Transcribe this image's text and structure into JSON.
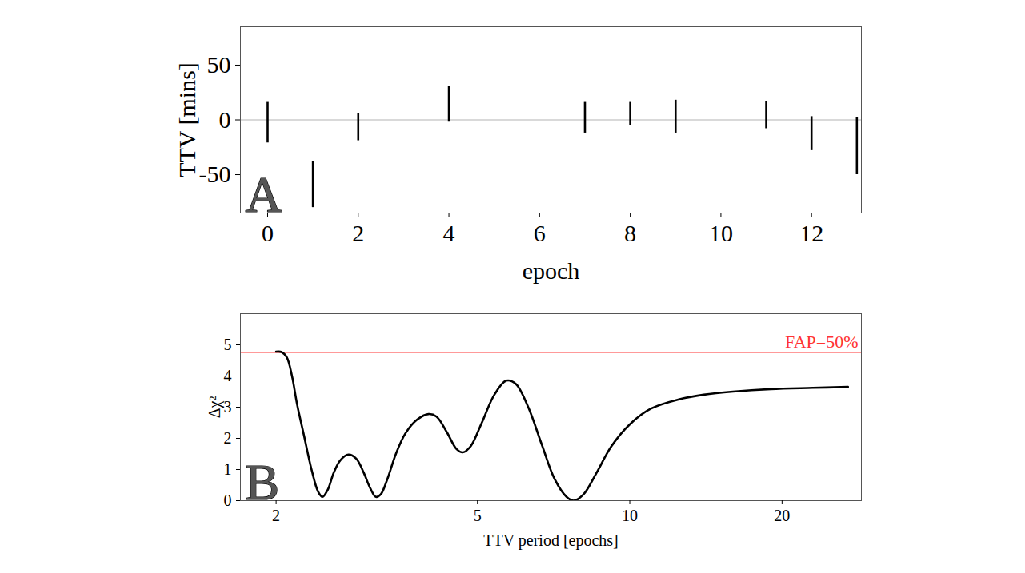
{
  "chart_data": [
    {
      "type": "errorbar",
      "panel_label": "A",
      "x_label": "epoch",
      "y_label": "TTV [mins]",
      "x": [
        0,
        1,
        2,
        4,
        7,
        8,
        9,
        11,
        12,
        13
      ],
      "y_low": [
        -21,
        -80,
        -19,
        -2,
        -12,
        -5,
        -12,
        -8,
        -28,
        -50
      ],
      "y_high": [
        16,
        -38,
        6,
        31,
        16,
        16,
        18,
        17,
        3,
        2
      ],
      "color": "#000000",
      "xlim": [
        -0.6,
        13.1
      ],
      "ylim": [
        -85,
        85
      ],
      "xticks": [
        0,
        2,
        4,
        6,
        8,
        10,
        12
      ],
      "yticks": [
        -50,
        0,
        50
      ],
      "lines": [
        {
          "y": 0,
          "color": "#cccccc"
        }
      ]
    },
    {
      "type": "line",
      "panel_label": "B",
      "x_label": "TTV period [epochs]",
      "y_label": "Δχ²",
      "log": "x",
      "x": [
        2.0,
        2.05,
        2.1,
        2.15,
        2.2,
        2.27,
        2.35,
        2.42,
        2.47,
        2.53,
        2.6,
        2.68,
        2.78,
        2.88,
        2.98,
        3.07,
        3.15,
        3.22,
        3.32,
        3.45,
        3.6,
        3.8,
        4.0,
        4.15,
        4.35,
        4.55,
        4.68,
        4.85,
        5.1,
        5.4,
        5.7,
        5.95,
        6.3,
        6.7,
        7.1,
        7.5,
        7.75,
        8.1,
        8.6,
        9.2,
        10,
        11,
        12.5,
        14,
        16,
        19,
        23,
        27
      ],
      "values": [
        4.78,
        4.77,
        4.6,
        4.0,
        3.1,
        2.1,
        1.0,
        0.3,
        0.12,
        0.35,
        0.9,
        1.3,
        1.48,
        1.35,
        0.9,
        0.4,
        0.12,
        0.2,
        0.7,
        1.5,
        2.15,
        2.6,
        2.78,
        2.7,
        2.2,
        1.65,
        1.55,
        1.75,
        2.5,
        3.4,
        3.85,
        3.75,
        3.0,
        1.8,
        0.7,
        0.12,
        0.0,
        0.2,
        0.9,
        1.75,
        2.45,
        2.95,
        3.25,
        3.4,
        3.5,
        3.58,
        3.62,
        3.65
      ],
      "color": "#000000",
      "xlim": [
        1.7,
        28.7
      ],
      "ylim": [
        0,
        6
      ],
      "xticks": [
        2,
        5,
        10,
        20
      ],
      "yticks": [
        0,
        1,
        2,
        3,
        4,
        5
      ],
      "lines": [
        {
          "y": 4.75,
          "label": "FAP=50%",
          "color": "#ff9999",
          "label_color": "#ff3333"
        }
      ]
    }
  ]
}
